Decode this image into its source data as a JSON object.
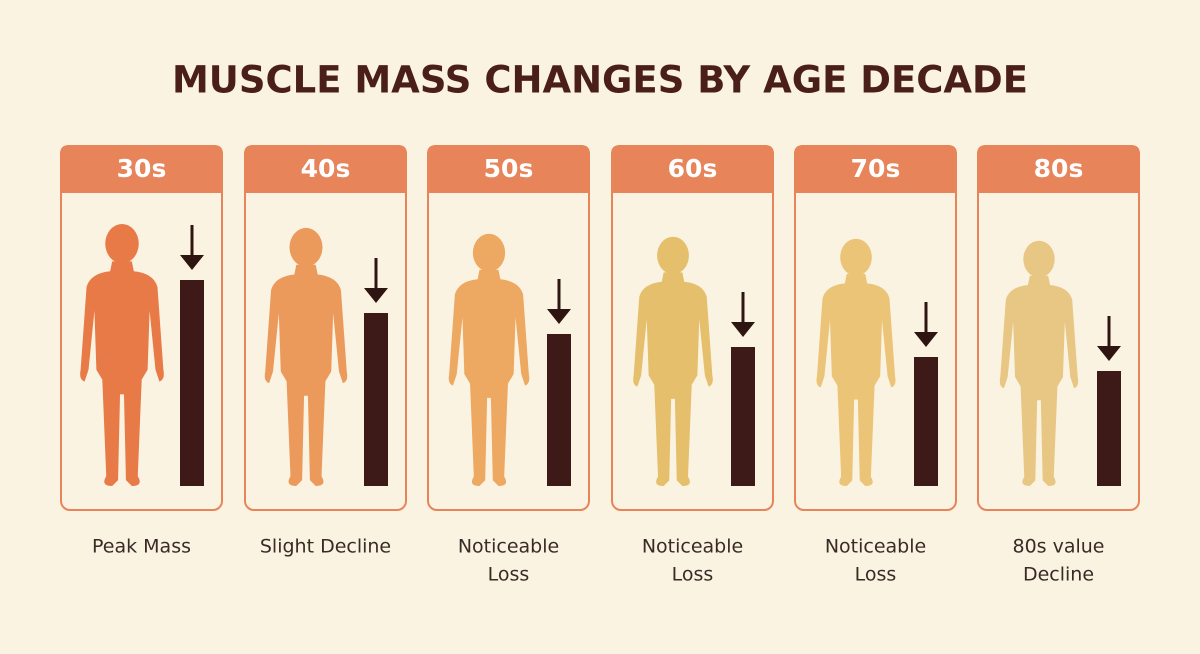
{
  "title": "MUSCLE MASS CHANGES BY AGE DECADE",
  "panels": [
    {
      "header": "30s",
      "caption": [
        "Peak Mass"
      ]
    },
    {
      "header": "40s",
      "caption": [
        "Slight Decline"
      ]
    },
    {
      "header": "50s",
      "caption": [
        "Noticeable",
        "Loss"
      ]
    },
    {
      "header": "60s",
      "caption": [
        "Noticeable",
        "Loss"
      ]
    },
    {
      "header": "70s",
      "caption": [
        "Noticeable",
        "Loss"
      ]
    },
    {
      "header": "80s",
      "caption": [
        "80s value",
        "Decline"
      ]
    }
  ]
}
